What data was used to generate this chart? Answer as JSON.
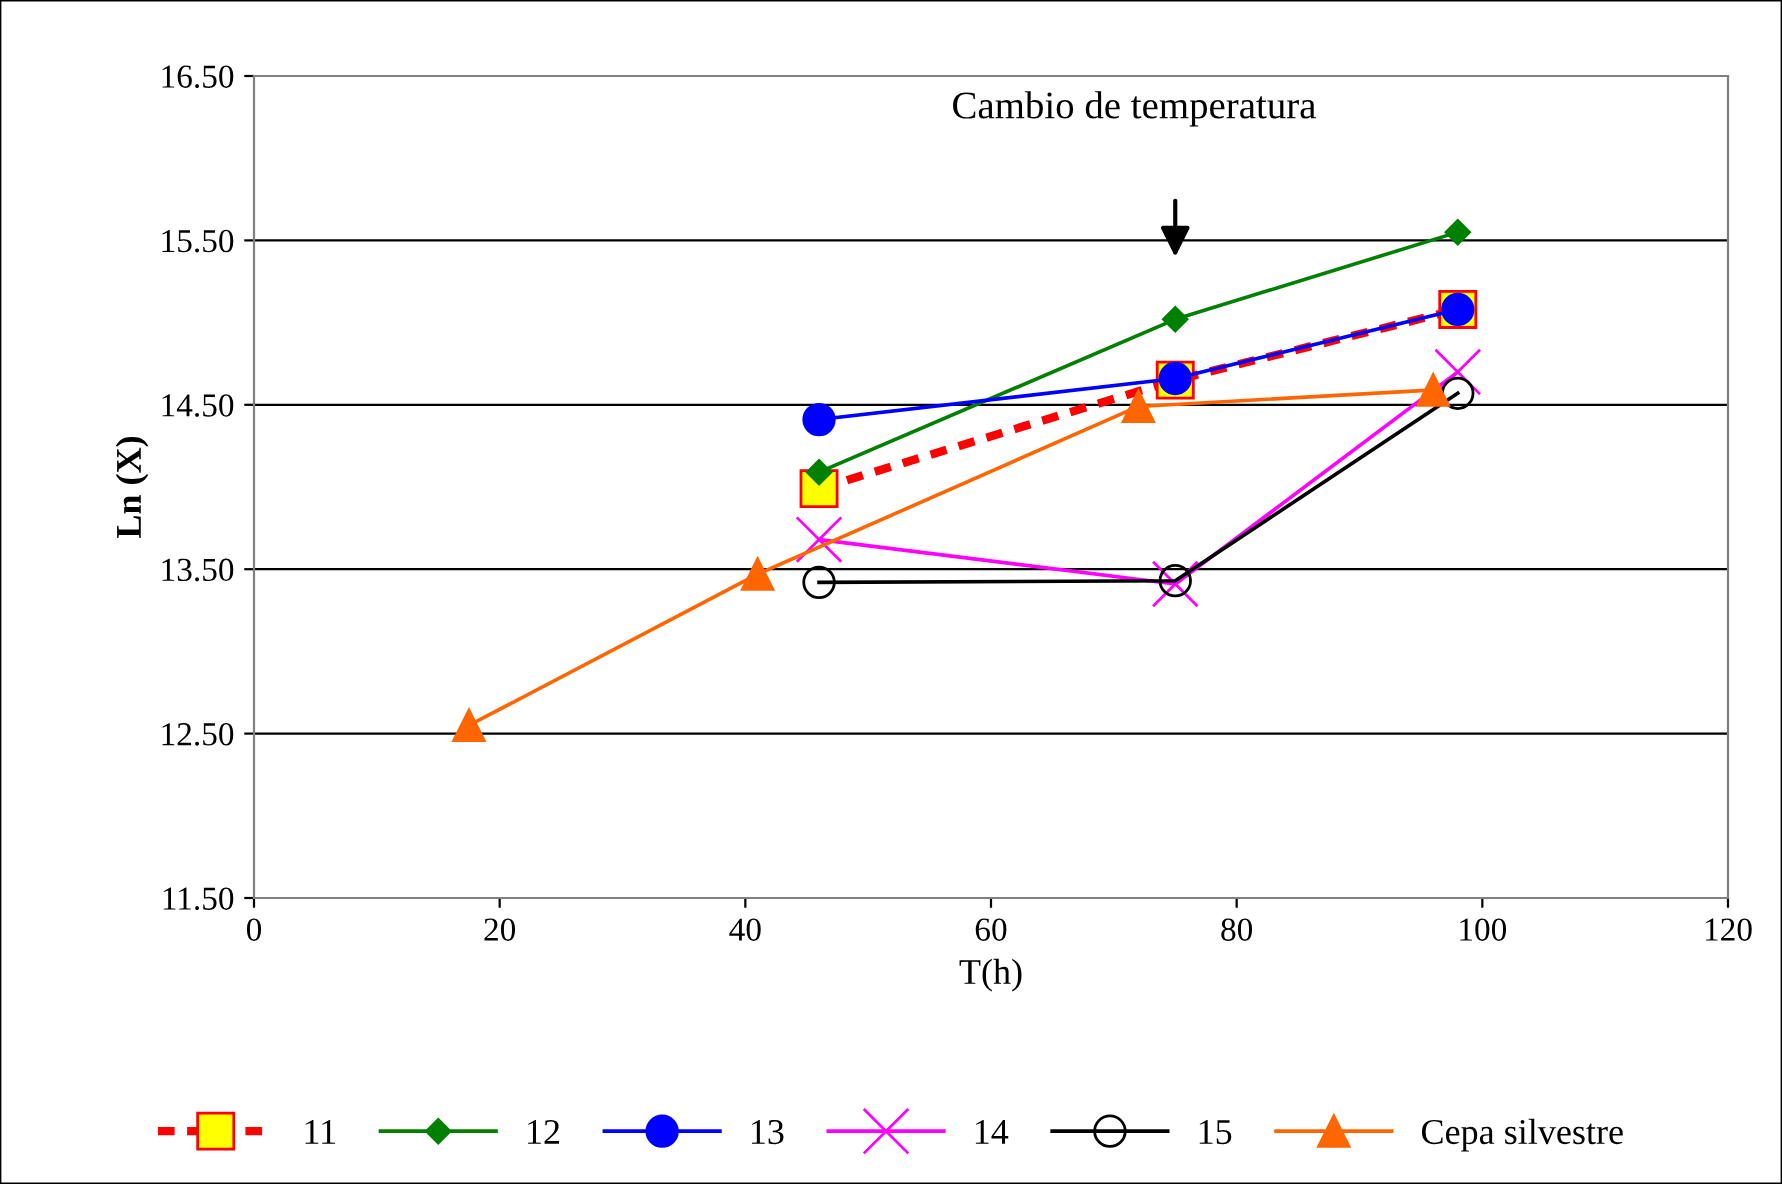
{
  "chart_data": {
    "type": "line",
    "xlabel": "T(h)",
    "ylabel": "Ln (X)",
    "xlim": [
      0,
      120
    ],
    "xticks": [
      0,
      20,
      40,
      60,
      80,
      100,
      120
    ],
    "ylim": [
      11.5,
      16.5
    ],
    "yticks": [
      {
        "value": 11.5,
        "label": "11.50"
      },
      {
        "value": 12.5,
        "label": "12.50"
      },
      {
        "value": 13.5,
        "label": "13.50"
      },
      {
        "value": 14.5,
        "label": "14.50"
      },
      {
        "value": 15.5,
        "label": "15.50"
      },
      {
        "value": 16.5,
        "label": "16.50"
      }
    ],
    "grid": "y",
    "legend": "bottom",
    "annotations": [
      "Cambio de temperatura"
    ],
    "series": [
      {
        "name": "11",
        "color": "#ff0000",
        "marker": "square",
        "line_style": "dashed",
        "x": [
          46,
          75,
          98
        ],
        "values": [
          13.99,
          14.65,
          15.08
        ]
      },
      {
        "name": "12",
        "color": "#008000",
        "marker": "diamond",
        "line_style": "solid",
        "x": [
          46,
          75,
          98
        ],
        "values": [
          14.09,
          15.02,
          15.55
        ]
      },
      {
        "name": "13",
        "color": "#0000ff",
        "marker": "circle",
        "line_style": "solid",
        "x": [
          46,
          75,
          98
        ],
        "values": [
          14.41,
          14.66,
          15.08
        ]
      },
      {
        "name": "14",
        "color": "#ff00ff",
        "marker": "cross",
        "line_style": "solid",
        "x": [
          46,
          75,
          98
        ],
        "values": [
          13.68,
          13.41,
          14.7
        ]
      },
      {
        "name": "15",
        "color": "#000000",
        "marker": "circle",
        "line_style": "solid",
        "x": [
          46,
          75,
          98
        ],
        "values": [
          13.42,
          13.43,
          14.57
        ]
      },
      {
        "name": "Cepa silvestre",
        "color": "#ff6600",
        "marker": "triangle",
        "line_style": "solid",
        "x": [
          17.5,
          41,
          72,
          96
        ],
        "values": [
          12.55,
          13.47,
          14.49,
          14.59
        ]
      }
    ]
  }
}
